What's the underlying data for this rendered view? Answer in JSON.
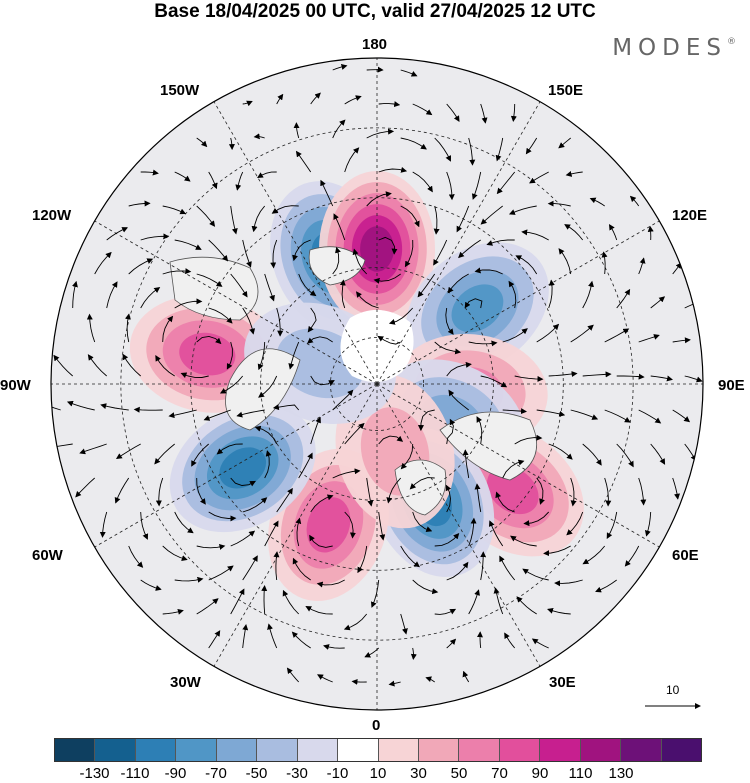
{
  "title": "Base 18/04/2025 00 UTC, valid 27/04/2025 12 UTC",
  "brand": "MODES",
  "brand_mark": "®",
  "longitude_labels": {
    "top": "180",
    "top_left": "150W",
    "top_right": "150E",
    "upper_left": "120W",
    "upper_right": "120E",
    "left": "90W",
    "right": "90E",
    "lower_left": "60W",
    "lower_right": "60E",
    "bottom_left": "30W",
    "bottom_right": "30E",
    "bottom": "0"
  },
  "reference_vector": {
    "label": "10"
  },
  "colorbar": {
    "colors": [
      "#0e3f60",
      "#14608f",
      "#2d7fb5",
      "#5096c6",
      "#7ea8d4",
      "#a9bde0",
      "#d8d9ec",
      "#ffffff",
      "#f7d4d6",
      "#f1a8b8",
      "#ec7fab",
      "#e24f9c",
      "#c71f8f",
      "#a0137f",
      "#6d1178",
      "#4a0f6e"
    ],
    "tick_labels": [
      "-130",
      "-110",
      "-90",
      "-70",
      "-50",
      "-30",
      "-10",
      "10",
      "30",
      "50",
      "70",
      "90",
      "110",
      "130"
    ]
  },
  "anomaly_centers": [
    {
      "name": "low-150w",
      "lon": -160,
      "colat": 29,
      "value": -95
    },
    {
      "name": "high-180",
      "lon": 180,
      "colat": 29,
      "value": 125
    },
    {
      "name": "low-130e",
      "lon": 127,
      "colat": 27,
      "value": -75
    },
    {
      "name": "high-90e",
      "lon": 85,
      "colat": 20,
      "value": 60
    },
    {
      "name": "low-70e",
      "lon": 63,
      "colat": 18,
      "value": -50
    },
    {
      "name": "high-55e",
      "lon": 52,
      "colat": 37,
      "value": 70
    },
    {
      "name": "low-30e",
      "lon": 25,
      "colat": 28,
      "value": -100
    },
    {
      "name": "high-30w",
      "lon": -19,
      "colat": 32,
      "value": 80
    },
    {
      "name": "low-60w",
      "lon": -58,
      "colat": 34,
      "value": -100
    },
    {
      "name": "high-100w",
      "lon": -100,
      "colat": 37,
      "value": 85
    },
    {
      "name": "high-10e",
      "lon": 15,
      "colat": 15,
      "value": 45
    },
    {
      "name": "low-110w",
      "lon": -110,
      "colat": 13,
      "value": -30
    }
  ]
}
